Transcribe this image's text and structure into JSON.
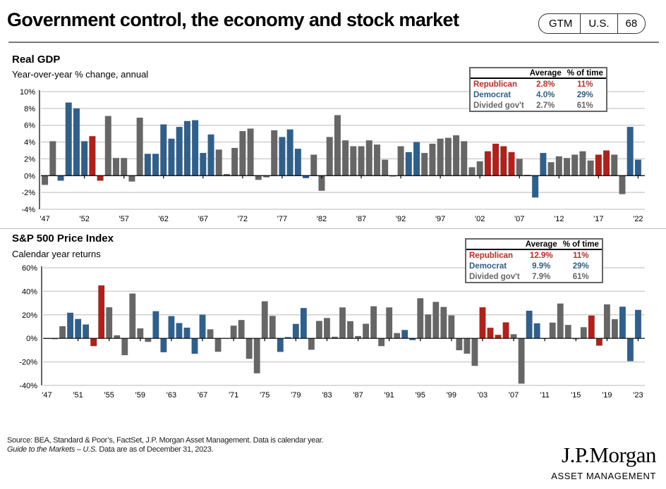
{
  "header": {
    "title": "Government control, the economy and stock market",
    "badge": [
      "GTM",
      "U.S.",
      "68"
    ]
  },
  "colors": {
    "R": "#b0211b",
    "D": "#2f5f8a",
    "G": "#666666"
  },
  "legend_labels": {
    "average": "Average",
    "pct_time": "% of time"
  },
  "chart_data": [
    {
      "type": "bar",
      "title": "Real GDP",
      "subtitle": "Year-over-year % change, annual",
      "xlabel": "",
      "ylabel": "",
      "ylim": [
        -4,
        10
      ],
      "yticks": [
        -4,
        -2,
        0,
        2,
        4,
        6,
        8,
        10
      ],
      "ytick_labels": [
        "-4%",
        "-2%",
        "0%",
        "2%",
        "4%",
        "6%",
        "8%",
        "10%"
      ],
      "grid": true,
      "x_start": 1947,
      "xtick_labels": [
        "'47",
        "'52",
        "'57",
        "'62",
        "'67",
        "'72",
        "'77",
        "'82",
        "'87",
        "'92",
        "'97",
        "'02",
        "'07",
        "'12",
        "'17",
        "'22"
      ],
      "values": [
        -1.1,
        4.1,
        -0.6,
        8.7,
        8.0,
        4.1,
        4.7,
        -0.6,
        7.1,
        2.1,
        2.1,
        -0.7,
        6.9,
        2.6,
        2.6,
        6.1,
        4.4,
        5.8,
        6.5,
        6.6,
        2.7,
        4.9,
        3.1,
        0.2,
        3.3,
        5.3,
        5.6,
        -0.5,
        -0.2,
        5.4,
        4.6,
        5.5,
        3.2,
        -0.3,
        2.5,
        -1.8,
        4.6,
        7.2,
        4.2,
        3.5,
        3.5,
        4.2,
        3.7,
        1.9,
        -0.1,
        3.5,
        2.8,
        4.0,
        2.7,
        3.8,
        4.4,
        4.5,
        4.8,
        4.1,
        1.0,
        1.7,
        2.9,
        3.8,
        3.5,
        2.8,
        2.0,
        0.1,
        -2.6,
        2.7,
        1.6,
        2.3,
        2.1,
        2.5,
        2.9,
        1.8,
        2.5,
        3.0,
        2.5,
        -2.2,
        5.8,
        1.9
      ],
      "party": [
        "G",
        "G",
        "D",
        "D",
        "D",
        "D",
        "R",
        "R",
        "G",
        "G",
        "G",
        "G",
        "G",
        "D",
        "D",
        "D",
        "D",
        "D",
        "D",
        "D",
        "D",
        "D",
        "G",
        "G",
        "G",
        "G",
        "G",
        "G",
        "G",
        "G",
        "D",
        "D",
        "D",
        "D",
        "G",
        "G",
        "G",
        "G",
        "G",
        "G",
        "G",
        "G",
        "G",
        "G",
        "G",
        "G",
        "D",
        "D",
        "G",
        "G",
        "G",
        "G",
        "G",
        "G",
        "G",
        "G",
        "R",
        "R",
        "R",
        "R",
        "G",
        "G",
        "D",
        "D",
        "G",
        "G",
        "G",
        "G",
        "G",
        "G",
        "R",
        "R",
        "G",
        "G",
        "D",
        "D"
      ],
      "legend": {
        "placement": "top-right",
        "rows": [
          {
            "label": "Republican",
            "average": "2.8%",
            "pct_time": "11%",
            "party": "R"
          },
          {
            "label": "Democrat",
            "average": "4.0%",
            "pct_time": "29%",
            "party": "D"
          },
          {
            "label": "Divided gov't",
            "average": "2.7%",
            "pct_time": "61%",
            "party": "G"
          }
        ]
      }
    },
    {
      "type": "bar",
      "title": "S&P 500 Price Index",
      "subtitle": "Calendar year returns",
      "xlabel": "",
      "ylabel": "",
      "ylim": [
        -40,
        60
      ],
      "yticks": [
        -40,
        -20,
        0,
        20,
        40,
        60
      ],
      "ytick_labels": [
        "-40%",
        "-20%",
        "0%",
        "20%",
        "40%",
        "60%"
      ],
      "grid": true,
      "x_start": 1947,
      "xtick_labels": [
        "'47",
        "'51",
        "'55",
        "'59",
        "'63",
        "'67",
        "'71",
        "'75",
        "'79",
        "'83",
        "'87",
        "'91",
        "'95",
        "'99",
        "'03",
        "'07",
        "'11",
        "'15",
        "'19",
        "'23"
      ],
      "values": [
        0.0,
        -0.7,
        10.3,
        21.8,
        16.5,
        11.8,
        -6.6,
        45.0,
        26.4,
        2.6,
        -14.3,
        38.1,
        8.5,
        -3.0,
        23.1,
        -11.8,
        18.9,
        13.0,
        9.1,
        -13.1,
        20.1,
        7.7,
        -11.4,
        0.1,
        10.8,
        15.6,
        -17.4,
        -29.7,
        31.5,
        19.1,
        -11.5,
        1.1,
        12.3,
        25.8,
        -9.7,
        14.8,
        17.3,
        1.4,
        26.3,
        14.6,
        2.0,
        12.4,
        27.3,
        -6.6,
        26.3,
        4.5,
        7.1,
        -1.5,
        34.1,
        20.3,
        31.0,
        26.7,
        19.5,
        -10.1,
        -13.0,
        -23.4,
        26.4,
        9.0,
        3.0,
        13.6,
        3.5,
        -38.5,
        23.5,
        12.8,
        0.0,
        13.4,
        29.6,
        11.4,
        -0.7,
        9.5,
        19.4,
        -6.2,
        28.9,
        16.3,
        26.9,
        -19.4,
        24.2
      ],
      "party": [
        "G",
        "G",
        "G",
        "D",
        "D",
        "D",
        "R",
        "R",
        "G",
        "G",
        "G",
        "G",
        "G",
        "G",
        "D",
        "D",
        "D",
        "D",
        "D",
        "D",
        "D",
        "G",
        "G",
        "G",
        "G",
        "G",
        "G",
        "G",
        "G",
        "G",
        "D",
        "D",
        "D",
        "D",
        "G",
        "G",
        "G",
        "G",
        "G",
        "G",
        "G",
        "G",
        "G",
        "G",
        "G",
        "G",
        "D",
        "D",
        "G",
        "G",
        "G",
        "G",
        "G",
        "G",
        "G",
        "G",
        "R",
        "R",
        "R",
        "R",
        "G",
        "G",
        "D",
        "D",
        "G",
        "G",
        "G",
        "G",
        "G",
        "G",
        "R",
        "R",
        "G",
        "G",
        "D",
        "D",
        "D"
      ],
      "legend": {
        "placement": "top-right",
        "rows": [
          {
            "label": "Republican",
            "average": "12.9%",
            "pct_time": "11%",
            "party": "R"
          },
          {
            "label": "Democrat",
            "average": "9.9%",
            "pct_time": "29%",
            "party": "D"
          },
          {
            "label": "Divided gov't",
            "average": "7.9%",
            "pct_time": "61%",
            "party": "G"
          }
        ]
      }
    }
  ],
  "footer": {
    "source": "Source: BEA, Standard & Poor’s, FactSet, J.P. Morgan Asset Management. Data is calendar year.",
    "guide_italic": "Guide to the Markets – U.S.",
    "as_of": " Data are as of December 31, 2023.",
    "logo_main": "J.P.Morgan",
    "logo_sub": "ASSET MANAGEMENT"
  }
}
